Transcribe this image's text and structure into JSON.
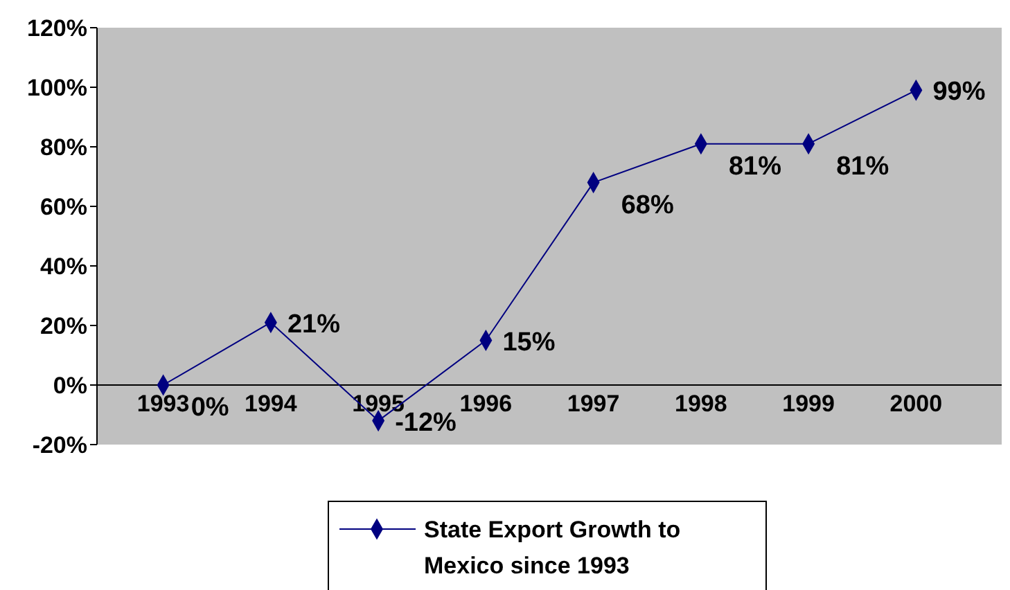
{
  "chart_data": {
    "type": "line",
    "categories": [
      "1993",
      "1994",
      "1995",
      "1996",
      "1997",
      "1998",
      "1999",
      "2000"
    ],
    "series": [
      {
        "name": "State Export Growth to Mexico since 1993",
        "color": "#000080",
        "values": [
          0,
          21,
          -12,
          15,
          68,
          81,
          81,
          99
        ],
        "value_labels": [
          "0%",
          "21%",
          "-12%",
          "15%",
          "68%",
          "81%",
          "81%",
          "99%"
        ]
      }
    ],
    "ylim": [
      -20,
      120
    ],
    "yticks": [
      {
        "value": -20,
        "label": "-20%"
      },
      {
        "value": 0,
        "label": "0%"
      },
      {
        "value": 20,
        "label": "20%"
      },
      {
        "value": 40,
        "label": "40%"
      },
      {
        "value": 60,
        "label": "60%"
      },
      {
        "value": 80,
        "label": "80%"
      },
      {
        "value": 100,
        "label": "100%"
      },
      {
        "value": 120,
        "label": "120%"
      }
    ],
    "grid": false,
    "legend": "bottom",
    "marker": "diamond",
    "line_style": "solid"
  }
}
